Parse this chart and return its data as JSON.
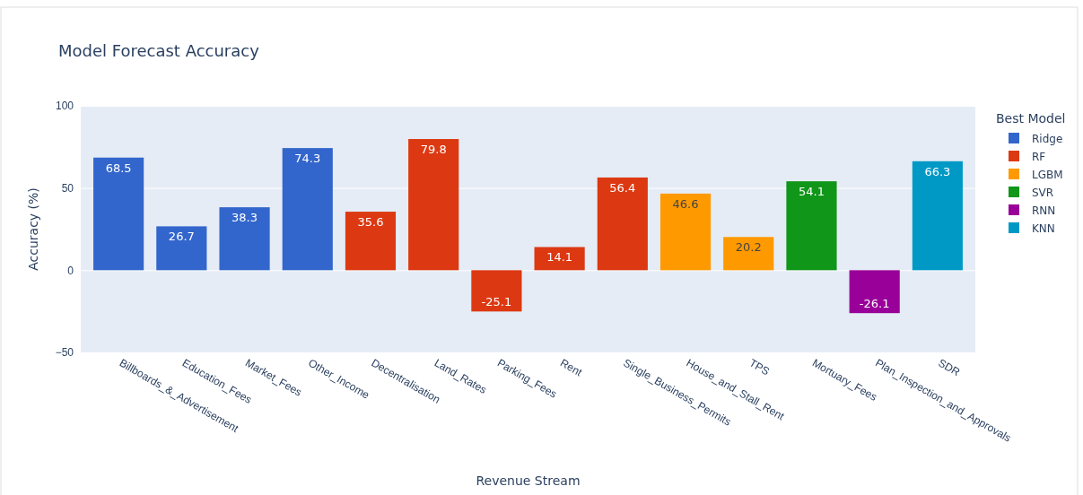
{
  "chart_data": {
    "type": "bar",
    "title": "Model Forecast Accuracy",
    "xlabel": "Revenue Stream",
    "ylabel": "Accuracy (%)",
    "legend_title": "Best Model",
    "categories": [
      "Billboards_&_Advertisement",
      "Education_Fees",
      "Market_Fees",
      "Other_Income",
      "Decentralisation",
      "Land_Rates",
      "Parking_Fees",
      "Rent",
      "Single_Business_Permits",
      "House_and_Stall_Rent",
      "TPS",
      "Mortuary_Fees",
      "Plan_Inspection_and_Approvals",
      "SDR"
    ],
    "series": [
      {
        "name": "Ridge",
        "color": "#3366cc",
        "values": [
          68.5,
          26.7,
          38.3,
          74.3,
          null,
          null,
          null,
          null,
          null,
          null,
          null,
          null,
          null,
          null
        ]
      },
      {
        "name": "RF",
        "color": "#dc3912",
        "values": [
          null,
          null,
          null,
          null,
          35.6,
          79.8,
          -25.1,
          14.1,
          56.4,
          null,
          null,
          null,
          null,
          null
        ]
      },
      {
        "name": "LGBM",
        "color": "#ff9900",
        "values": [
          null,
          null,
          null,
          null,
          null,
          null,
          null,
          null,
          null,
          46.6,
          20.2,
          null,
          null,
          null
        ]
      },
      {
        "name": "SVR",
        "color": "#109618",
        "values": [
          null,
          null,
          null,
          null,
          null,
          null,
          null,
          null,
          null,
          null,
          null,
          54.1,
          null,
          null
        ]
      },
      {
        "name": "RNN",
        "color": "#990099",
        "values": [
          null,
          null,
          null,
          null,
          null,
          null,
          null,
          null,
          null,
          null,
          null,
          null,
          -26.1,
          null
        ]
      },
      {
        "name": "KNN",
        "color": "#0099c6",
        "values": [
          null,
          null,
          null,
          null,
          null,
          null,
          null,
          null,
          null,
          null,
          null,
          null,
          null,
          66.3
        ]
      }
    ],
    "ylim": [
      -50,
      100
    ],
    "yticks": [
      {
        "value": -50,
        "label": "−50"
      },
      0,
      50,
      100
    ],
    "grid": "y",
    "legend": "right",
    "data_labels": true
  }
}
